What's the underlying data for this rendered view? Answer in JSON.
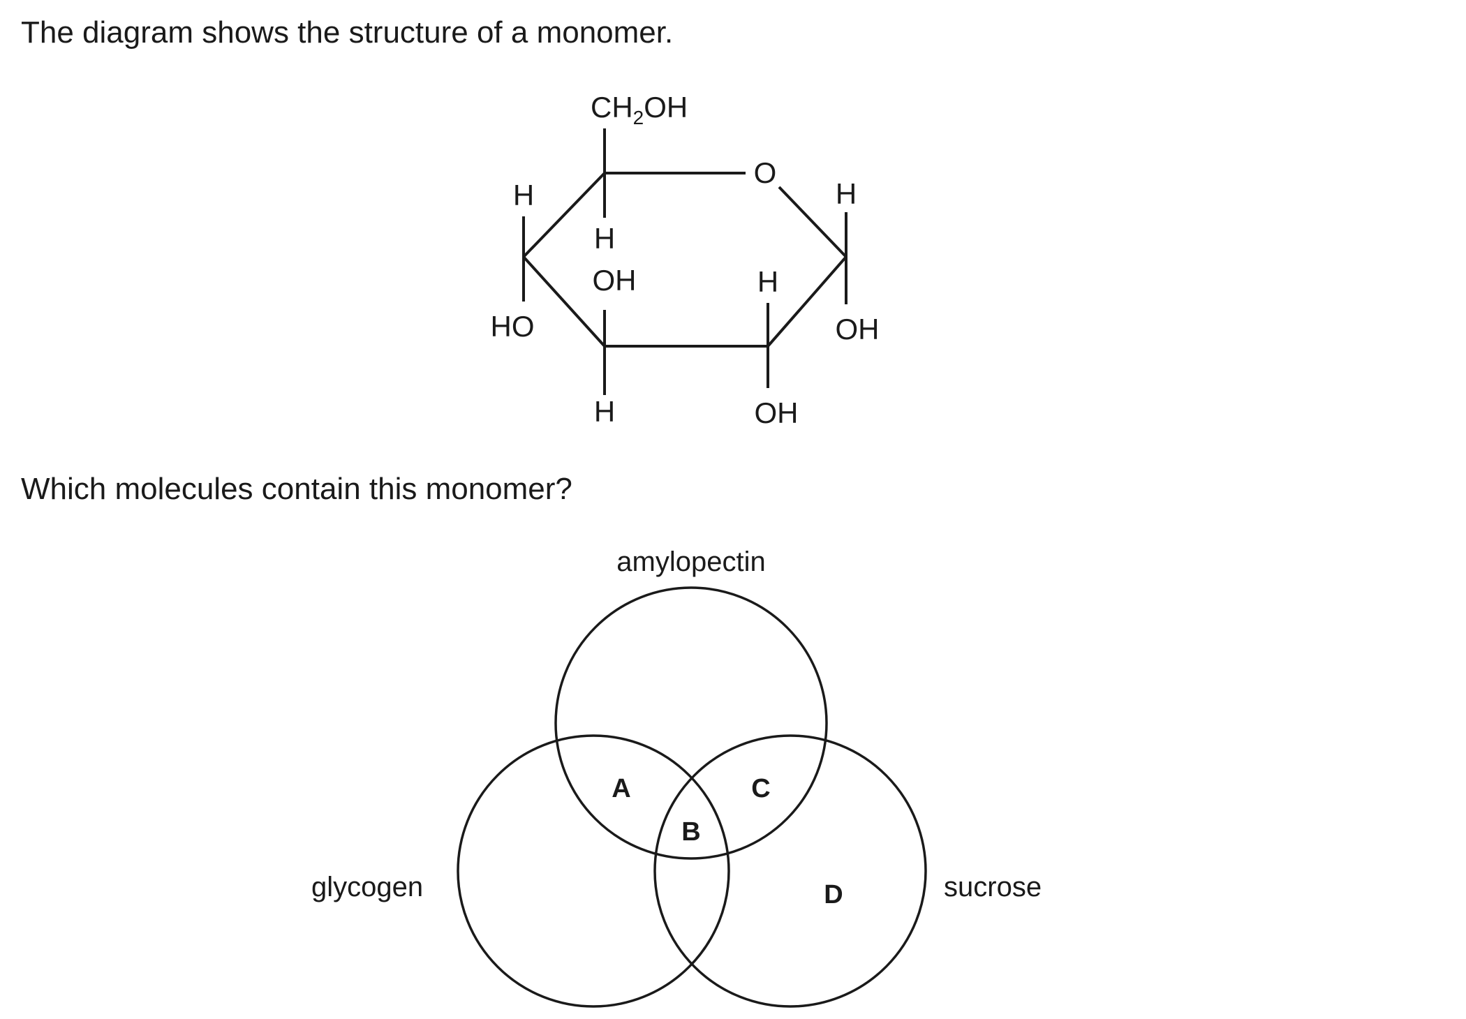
{
  "question": {
    "intro": "The diagram shows the structure of a monomer.",
    "prompt": "Which molecules contain this monomer?"
  },
  "monomer": {
    "top_group_main": "CH",
    "top_group_sub": "2",
    "top_group_end": "OH",
    "ring_oxygen": "O",
    "atoms": {
      "c5_h": "H",
      "c4_h_top": "H",
      "c4_ho": "HO",
      "c3_h_top": "H",
      "c3_oh_top": "OH",
      "c3_h_bottom": "H",
      "c2_h_top": "H",
      "c2_oh_bottom": "OH",
      "c1_h": "H",
      "c1_oh": "OH"
    }
  },
  "venn": {
    "sets": {
      "top": "amylopectin",
      "left": "glycogen",
      "right": "sucrose"
    },
    "regions": {
      "a": "A",
      "b": "B",
      "c": "C",
      "d": "D"
    }
  }
}
